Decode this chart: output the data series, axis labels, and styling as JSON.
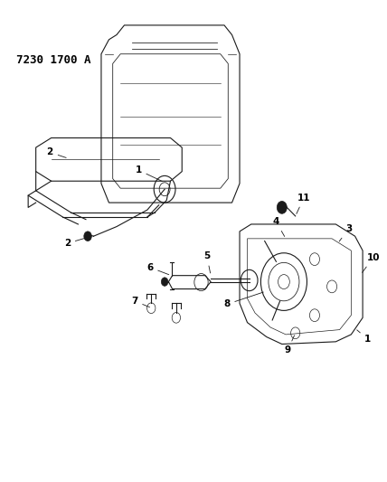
{
  "title": "7230 1700 A",
  "background_color": "#ffffff",
  "text_color": "#000000",
  "figsize": [
    4.28,
    5.33
  ],
  "dpi": 100
}
